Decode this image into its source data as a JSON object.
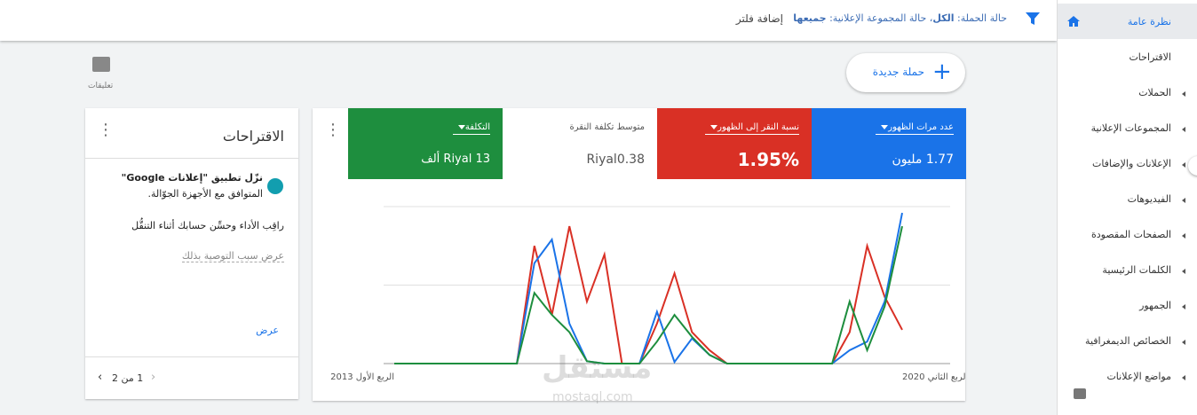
{
  "top_bar": {
    "filter_parts": [
      "حالة الحملة:",
      "الكل",
      "، حالة المجموعة الإعلانية:",
      "جميعها"
    ],
    "add_filter": "إضافة فلتر"
  },
  "sidebar": {
    "items": [
      "نظرة عامة",
      "الاقتراحات",
      "الحملات",
      "المجموعات الإعلانية",
      "الإعلانات والإضافات",
      "الفيديوهات",
      "الصفحات المقصودة",
      "الكلمات الرئيسية",
      "الجمهور",
      "الخصائص الديمغرافية",
      "مواضع الإعلانات"
    ]
  },
  "new_campaign": "حملة جديدة",
  "feedback": "تعليقات",
  "metrics": [
    {
      "label": "عدد مرات الظهور",
      "value": "1.77 مليون"
    },
    {
      "label": "نسبة النقر إلى الظهور",
      "value": "1.95%"
    },
    {
      "label": "متوسط تكلفة النقرة",
      "value": "Riyal0.38"
    },
    {
      "label": "التكلفة",
      "value": "Riyal 13 ألف"
    }
  ],
  "chart_data": {
    "type": "line",
    "categories": [
      "الربع الأول 2013",
      null,
      null,
      null,
      null,
      null,
      null,
      null,
      null,
      null,
      null,
      null,
      null,
      null,
      null,
      null,
      null,
      null,
      null,
      null,
      null,
      null,
      null,
      null,
      null,
      null,
      null,
      null,
      null,
      "الربع الثاني 2020"
    ],
    "ylim": [
      0,
      2
    ],
    "series": [
      {
        "color": "#d93025",
        "values": [
          0,
          0,
          0,
          0,
          0,
          0,
          0,
          0,
          1.5,
          0.62,
          1.75,
          0.79,
          1.39,
          0,
          0,
          0.51,
          1.15,
          0.4,
          0.17,
          0,
          0,
          0,
          0,
          0,
          0,
          0,
          0.4,
          1.5,
          0.85,
          0.43
        ]
      },
      {
        "color": "#1a73e8",
        "values": [
          0,
          0,
          0,
          0,
          0,
          0,
          0,
          0,
          1.28,
          1.58,
          0.51,
          0.03,
          0,
          0,
          0,
          0.66,
          0.02,
          0.32,
          0.11,
          0,
          0,
          0,
          0,
          0,
          0,
          0,
          0.17,
          0.28,
          0.79,
          1.92
        ]
      },
      {
        "color": "#1e8e3e",
        "values": [
          0,
          0,
          0,
          0,
          0,
          0,
          0,
          0,
          0.9,
          0.62,
          0.4,
          0.03,
          0,
          0,
          0,
          0.28,
          0.62,
          0.34,
          0.11,
          0,
          0,
          0,
          0,
          0,
          0,
          0,
          0.79,
          0.17,
          0.73,
          1.75
        ]
      }
    ]
  },
  "suggestions": {
    "title": "الاقتراحات",
    "line1": "نزّل تطبيق \"إعلانات Google\"",
    "line2": "المتوافق مع الأجهزة الجوّالة.",
    "body": "راقِب الأداء وحسِّن حسابك أثناء التنقُّل",
    "reason": "عرض سبب التوصية بذلك",
    "view": "عرض",
    "pager": "1 من 2"
  },
  "watermark": {
    "brand": "مستقل",
    "site": "mostaql.com"
  }
}
